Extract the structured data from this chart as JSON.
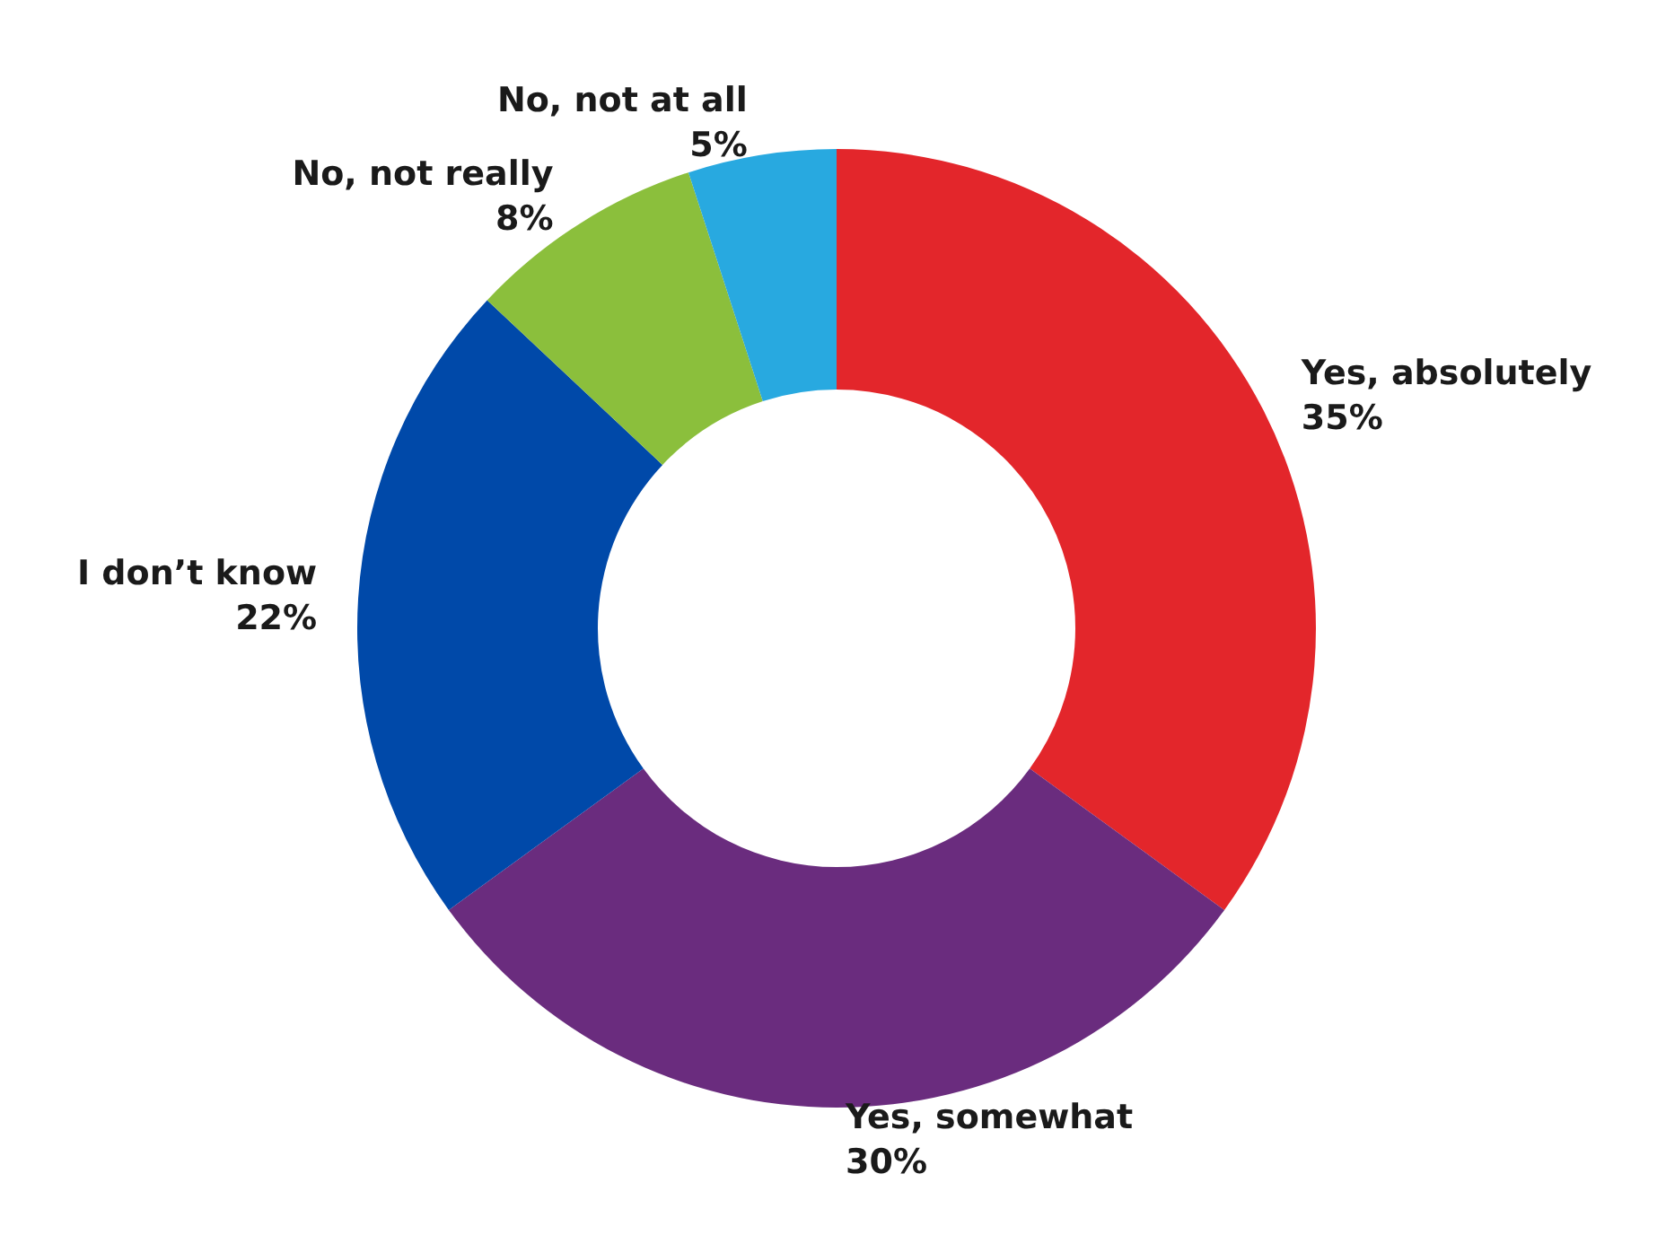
{
  "chart_data": {
    "type": "donut",
    "categories": [
      "Yes, absolutely",
      "Yes, somewhat",
      "I don’t know",
      "No, not really",
      "No, not at all"
    ],
    "values": [
      35,
      30,
      22,
      8,
      5
    ],
    "value_labels": [
      "35%",
      "30%",
      "22%",
      "8%",
      "5%"
    ],
    "colors": [
      "#e3262b",
      "#6a2c7e",
      "#0049a9",
      "#8bbf3c",
      "#28a9e0"
    ],
    "legend": false
  }
}
